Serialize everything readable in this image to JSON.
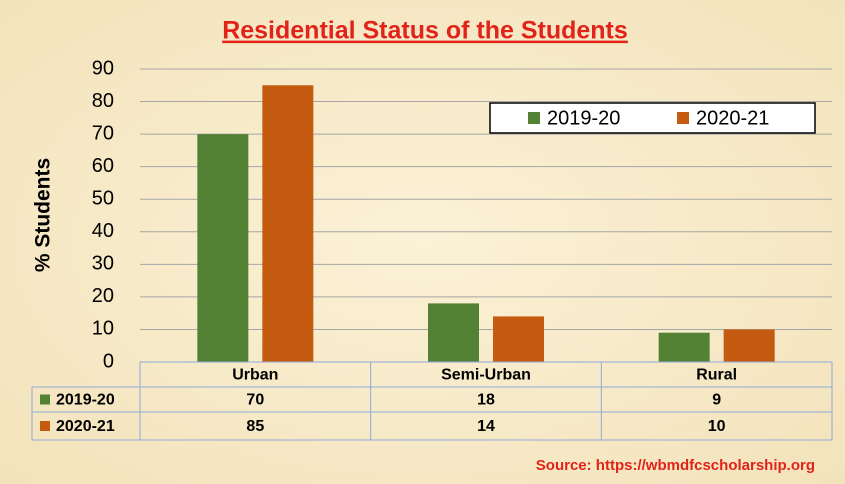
{
  "chart_data": {
    "type": "bar",
    "title": "Residential Status of the Students",
    "ylabel": "% Students",
    "categories": [
      "Urban",
      "Semi-Urban",
      "Rural"
    ],
    "series": [
      {
        "name": "2019-20",
        "color": "#548235",
        "values": [
          70,
          18,
          9
        ]
      },
      {
        "name": "2020-21",
        "color": "#c55a11",
        "values": [
          85,
          14,
          10
        ]
      }
    ],
    "ylim": [
      0,
      90
    ],
    "yticks": [
      0,
      10,
      20,
      30,
      40,
      50,
      60,
      70,
      80,
      90
    ],
    "grid": true,
    "legend": "top-right",
    "source": "Source: https://wbmdfcscholarship.org"
  }
}
